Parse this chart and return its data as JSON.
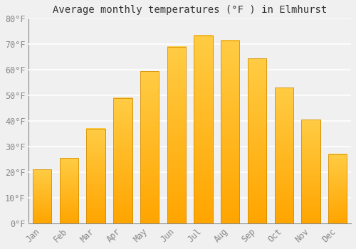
{
  "title": "Average monthly temperatures (°F ) in Elmhurst",
  "months": [
    "Jan",
    "Feb",
    "Mar",
    "Apr",
    "May",
    "Jun",
    "Jul",
    "Aug",
    "Sep",
    "Oct",
    "Nov",
    "Dec"
  ],
  "values": [
    21,
    25.5,
    37,
    49,
    59.5,
    69,
    73.5,
    71.5,
    64.5,
    53,
    40.5,
    27
  ],
  "bar_color_light": "#FFCC44",
  "bar_color_dark": "#FFA500",
  "bar_edge_color": "#CC8800",
  "ylim": [
    0,
    80
  ],
  "ytick_step": 10,
  "background_color": "#F0F0F0",
  "plot_bg_color": "#F0F0F0",
  "grid_color": "#FFFFFF",
  "title_fontsize": 10,
  "tick_fontsize": 8.5,
  "font_family": "monospace"
}
